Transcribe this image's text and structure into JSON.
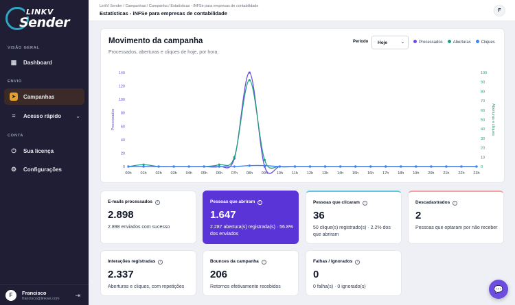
{
  "sidebar": {
    "logo_top": "LINKV",
    "logo_main": "Sender",
    "sections": [
      "VISÃO GERAL",
      "ENVIO",
      "CONTA"
    ],
    "items": [
      {
        "label": "Dashboard",
        "icon": "grid-icon"
      },
      {
        "label": "Campanhas",
        "icon": "send-icon"
      },
      {
        "label": "Acesso rápido",
        "icon": "menu-icon"
      },
      {
        "label": "Sua licença",
        "icon": "license-icon"
      },
      {
        "label": "Configurações",
        "icon": "gear-icon"
      }
    ],
    "user": {
      "initial": "F",
      "name": "Francisco",
      "email": "francisco@linkws.com"
    }
  },
  "header": {
    "breadcrumb": "LinkV Sender  /  Campanhas  /  Campanha  /  Estatísticas - iNFSe para empresas de contabilidade",
    "title": "Estatísticas - iNFSe para empresas de contabilidade",
    "avatar": "F"
  },
  "chart_card": {
    "title": "Movimento da campanha",
    "subtitle": "Processados, aberturas e cliques de hoje, por hora.",
    "period_label": "Período",
    "period_value": "Hoje",
    "legend": [
      {
        "name": "Processados",
        "color": "#6d4ce0"
      },
      {
        "name": "Aberturas",
        "color": "#1fa07a"
      },
      {
        "name": "Cliques",
        "color": "#3b82f6"
      }
    ]
  },
  "chart_data": {
    "type": "line",
    "categories": [
      "00h",
      "01h",
      "02h",
      "03h",
      "04h",
      "05h",
      "06h",
      "07h",
      "08h",
      "09h",
      "10h",
      "11h",
      "12h",
      "13h",
      "14h",
      "15h",
      "16h",
      "17h",
      "18h",
      "19h",
      "20h",
      "21h",
      "22h",
      "23h"
    ],
    "ylabel": "Processados",
    "y2label": "Aberturas e cliques",
    "ylim": [
      0,
      140
    ],
    "yticks": [
      0,
      20,
      40,
      60,
      80,
      100,
      120,
      140
    ],
    "y2lim": [
      0,
      100
    ],
    "y2ticks": [
      0,
      10,
      20,
      30,
      40,
      50,
      60,
      70,
      80,
      90,
      100
    ],
    "series": [
      {
        "name": "Processados",
        "axis": "left",
        "color": "#6d4ce0",
        "values": [
          0,
          0,
          0,
          0,
          0,
          0,
          0,
          12,
          140,
          0,
          0,
          0,
          0,
          0,
          0,
          0,
          0,
          0,
          0,
          0,
          0,
          0,
          0,
          0
        ]
      },
      {
        "name": "Aberturas",
        "axis": "right",
        "color": "#1fa07a",
        "values": [
          0,
          2,
          0,
          0,
          0,
          0,
          2,
          10,
          92,
          7,
          0,
          0,
          0,
          0,
          0,
          0,
          0,
          0,
          0,
          0,
          0,
          0,
          0,
          0
        ]
      },
      {
        "name": "Cliques",
        "axis": "right",
        "color": "#3b82f6",
        "values": [
          0,
          0,
          0,
          0,
          0,
          0,
          0,
          0,
          1,
          1,
          0,
          0,
          0,
          0,
          0,
          0,
          0,
          0,
          0,
          0,
          0,
          0,
          0,
          0
        ]
      }
    ]
  },
  "cards": [
    {
      "label": "E-mails processados",
      "value": "2.898",
      "desc": "2.898 enviados com sucesso"
    },
    {
      "label": "Pessoas que abriram",
      "value": "1.647",
      "desc": "2.287 abertura(s) registrada(s) · 56.8% dos enviados"
    },
    {
      "label": "Pessoas que clicaram",
      "value": "36",
      "desc": "50 clique(s) registrado(s) · 2.2% dos que abriram"
    },
    {
      "label": "Descadastrados",
      "value": "2",
      "desc": "Pessoas que optaram por não receber"
    },
    {
      "label": "Interações registradas",
      "value": "2.337",
      "desc": "Aberturas e cliques, com repetições"
    },
    {
      "label": "Bounces da campanha",
      "value": "206",
      "desc": "Retornos efetivamente recebidos"
    },
    {
      "label": "Falhas / Ignorados",
      "value": "0",
      "desc": "0 falha(s) · 0 ignorado(s)"
    }
  ]
}
